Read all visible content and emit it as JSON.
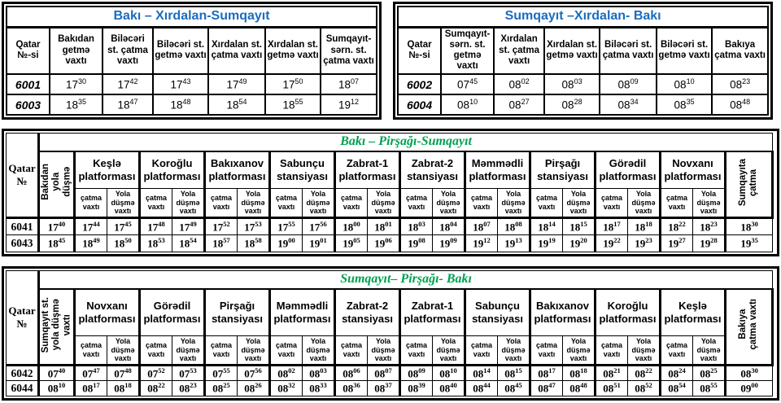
{
  "colors": {
    "title_blue": "#1b6cbe",
    "title_green": "#00a050",
    "border": "#000000",
    "text": "#000000"
  },
  "tables": {
    "top_left": {
      "title": "Bakı – Xırdalan-Sumqayıt",
      "columns": [
        "Qatar №-si",
        "Bakıdan getmə vaxtı",
        "Biləcəri st. çatma vaxtı",
        "Biləcəri st. getmə vaxtı",
        "Xırdalan st. çatma vaxtı",
        "Xırdalan st. getmə vaxtı",
        "Sumqayıt-sərn. st. çatma vaxtı"
      ],
      "rows": [
        {
          "train": "6001",
          "times": [
            [
              "17",
              "30"
            ],
            [
              "17",
              "42"
            ],
            [
              "17",
              "43"
            ],
            [
              "17",
              "49"
            ],
            [
              "17",
              "50"
            ],
            [
              "18",
              "07"
            ]
          ]
        },
        {
          "train": "6003",
          "times": [
            [
              "18",
              "35"
            ],
            [
              "18",
              "47"
            ],
            [
              "18",
              "48"
            ],
            [
              "18",
              "54"
            ],
            [
              "18",
              "55"
            ],
            [
              "19",
              "12"
            ]
          ]
        }
      ]
    },
    "top_right": {
      "title": "Sumqayıt –Xırdalan- Bakı",
      "columns": [
        "Qatar №-si",
        "Sumqayıt-sərn. st. getmə vaxtı",
        "Xırdalan st. çatma vaxtı",
        "Xırdalan st. getmə vaxtı",
        "Biləcəri st. çatma vaxtı",
        "Biləcəri st. getmə vaxtı",
        "Bakıya çatma vaxtı"
      ],
      "rows": [
        {
          "train": "6002",
          "times": [
            [
              "07",
              "45"
            ],
            [
              "08",
              "02"
            ],
            [
              "08",
              "03"
            ],
            [
              "08",
              "09"
            ],
            [
              "08",
              "10"
            ],
            [
              "08",
              "23"
            ]
          ]
        },
        {
          "train": "6004",
          "times": [
            [
              "08",
              "10"
            ],
            [
              "08",
              "27"
            ],
            [
              "08",
              "28"
            ],
            [
              "08",
              "34"
            ],
            [
              "08",
              "35"
            ],
            [
              "08",
              "48"
            ]
          ]
        }
      ]
    },
    "middle": {
      "title": "Bakı – Pirşağı-Sumqayıt",
      "corner": "Qatar\n№",
      "depart_label": "Bakıdan\nyola\ndüşmə",
      "arrive_label": "Sumqayıta\nçatma",
      "sub_arrive": "çatma\nvaxtı",
      "sub_depart": "Yola\ndüşmə\nvaxtı",
      "stations": [
        "Keşlə platforması",
        "Koroğlu platforması",
        "Bakıxanov platforması",
        "Sabunçu stansiyası",
        "Zabrat-1 platforması",
        "Zabrat-2 stansiyası",
        "Məmmədli platforması",
        "Pirşağı stansiyası",
        "Görədil platforması",
        "Novxanı platforması"
      ],
      "rows": [
        {
          "train": "6041",
          "depart": [
            "17",
            "40"
          ],
          "stops": [
            [
              "17",
              "44"
            ],
            [
              "17",
              "45"
            ],
            [
              "17",
              "48"
            ],
            [
              "17",
              "49"
            ],
            [
              "17",
              "52"
            ],
            [
              "17",
              "53"
            ],
            [
              "17",
              "55"
            ],
            [
              "17",
              "56"
            ],
            [
              "18",
              "00"
            ],
            [
              "18",
              "01"
            ],
            [
              "18",
              "03"
            ],
            [
              "18",
              "04"
            ],
            [
              "18",
              "07"
            ],
            [
              "18",
              "08"
            ],
            [
              "18",
              "14"
            ],
            [
              "18",
              "15"
            ],
            [
              "18",
              "17"
            ],
            [
              "18",
              "18"
            ],
            [
              "18",
              "22"
            ],
            [
              "18",
              "23"
            ]
          ],
          "arrive": [
            "18",
            "30"
          ]
        },
        {
          "train": "6043",
          "depart": [
            "18",
            "45"
          ],
          "stops": [
            [
              "18",
              "49"
            ],
            [
              "18",
              "50"
            ],
            [
              "18",
              "53"
            ],
            [
              "18",
              "54"
            ],
            [
              "18",
              "57"
            ],
            [
              "18",
              "58"
            ],
            [
              "19",
              "00"
            ],
            [
              "19",
              "01"
            ],
            [
              "19",
              "05"
            ],
            [
              "19",
              "06"
            ],
            [
              "19",
              "08"
            ],
            [
              "19",
              "09"
            ],
            [
              "19",
              "12"
            ],
            [
              "19",
              "13"
            ],
            [
              "19",
              "19"
            ],
            [
              "19",
              "20"
            ],
            [
              "19",
              "22"
            ],
            [
              "19",
              "23"
            ],
            [
              "19",
              "27"
            ],
            [
              "19",
              "28"
            ]
          ],
          "arrive": [
            "19",
            "35"
          ]
        }
      ]
    },
    "bottom": {
      "title": "Sumqayıt– Pirşağı- Bakı",
      "corner": "Qatar\n№",
      "depart_label": "Sumqayıt st.\nyola düşmə\nvaxtı",
      "arrive_label": "Bakıya\nçatma vaxtı",
      "sub_arrive": "çatma\nvaxtı",
      "sub_depart": "Yola\ndüşmə\nvaxtı",
      "stations": [
        "Novxanı platforması",
        "Görədil platforması",
        "Pirşağı stansiyası",
        "Məmmədli platforması",
        "Zabrat-2 stansiyası",
        "Zabrat-1 platforması",
        "Sabunçu stansiyası",
        "Bakıxanov platforması",
        "Koroğlu platforması",
        "Keşlə platforması"
      ],
      "rows": [
        {
          "train": "6042",
          "depart": [
            "07",
            "40"
          ],
          "stops": [
            [
              "07",
              "47"
            ],
            [
              "07",
              "48"
            ],
            [
              "07",
              "52"
            ],
            [
              "07",
              "53"
            ],
            [
              "07",
              "55"
            ],
            [
              "07",
              "56"
            ],
            [
              "08",
              "02"
            ],
            [
              "08",
              "03"
            ],
            [
              "08",
              "06"
            ],
            [
              "08",
              "07"
            ],
            [
              "08",
              "09"
            ],
            [
              "08",
              "10"
            ],
            [
              "08",
              "14"
            ],
            [
              "08",
              "15"
            ],
            [
              "08",
              "17"
            ],
            [
              "08",
              "18"
            ],
            [
              "08",
              "21"
            ],
            [
              "08",
              "22"
            ],
            [
              "08",
              "24"
            ],
            [
              "08",
              "25"
            ]
          ],
          "arrive": [
            "08",
            "30"
          ]
        },
        {
          "train": "6044",
          "depart": [
            "08",
            "10"
          ],
          "stops": [
            [
              "08",
              "17"
            ],
            [
              "08",
              "18"
            ],
            [
              "08",
              "22"
            ],
            [
              "08",
              "23"
            ],
            [
              "08",
              "25"
            ],
            [
              "08",
              "26"
            ],
            [
              "08",
              "32"
            ],
            [
              "08",
              "33"
            ],
            [
              "08",
              "36"
            ],
            [
              "08",
              "37"
            ],
            [
              "08",
              "39"
            ],
            [
              "08",
              "40"
            ],
            [
              "08",
              "44"
            ],
            [
              "08",
              "45"
            ],
            [
              "08",
              "47"
            ],
            [
              "08",
              "48"
            ],
            [
              "08",
              "51"
            ],
            [
              "08",
              "52"
            ],
            [
              "08",
              "54"
            ],
            [
              "08",
              "55"
            ]
          ],
          "arrive": [
            "09",
            "00"
          ]
        }
      ]
    }
  }
}
